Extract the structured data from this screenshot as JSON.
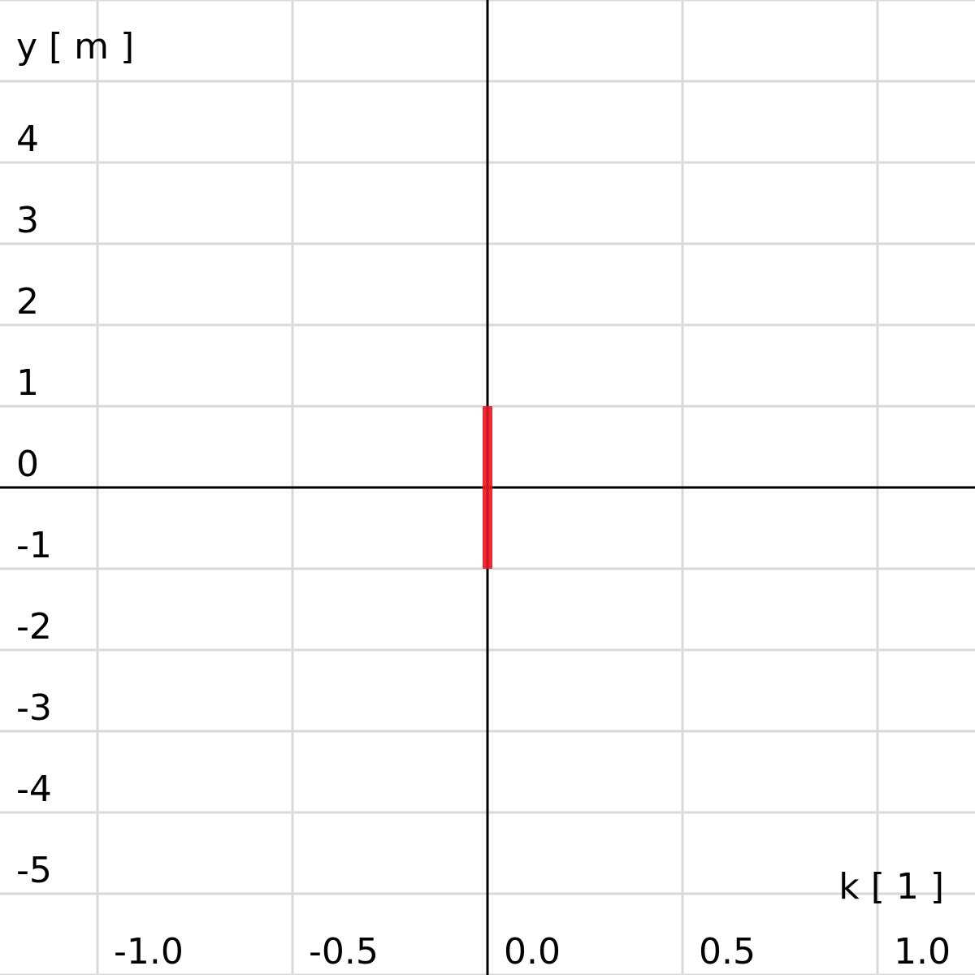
{
  "chart_data": {
    "type": "line",
    "title": "",
    "xlabel": "k [ 1 ]",
    "ylabel": "y [ m ]",
    "xlim": [
      -1.25,
      1.25
    ],
    "ylim": [
      -6,
      6
    ],
    "x_ticks": [
      -1.0,
      -0.5,
      0.0,
      0.5,
      1.0
    ],
    "x_tick_labels": [
      "-1.0",
      "-0.5",
      "0.0",
      "0.5",
      "1.0"
    ],
    "y_ticks": [
      -5,
      -4,
      -3,
      -2,
      -1,
      0,
      1,
      2,
      3,
      4
    ],
    "y_tick_labels": [
      "-5",
      "-4",
      "-3",
      "-2",
      "-1",
      "0",
      "1",
      "2",
      "3",
      "4"
    ],
    "grid": true,
    "legend": "none",
    "series": [
      {
        "color": "#e8141e",
        "x": [
          0.0,
          0.0
        ],
        "y": [
          -1.0,
          1.0
        ]
      }
    ],
    "colors": {
      "axis": "#000000",
      "grid": "#d9d9d9",
      "series": "#e8141e"
    }
  }
}
